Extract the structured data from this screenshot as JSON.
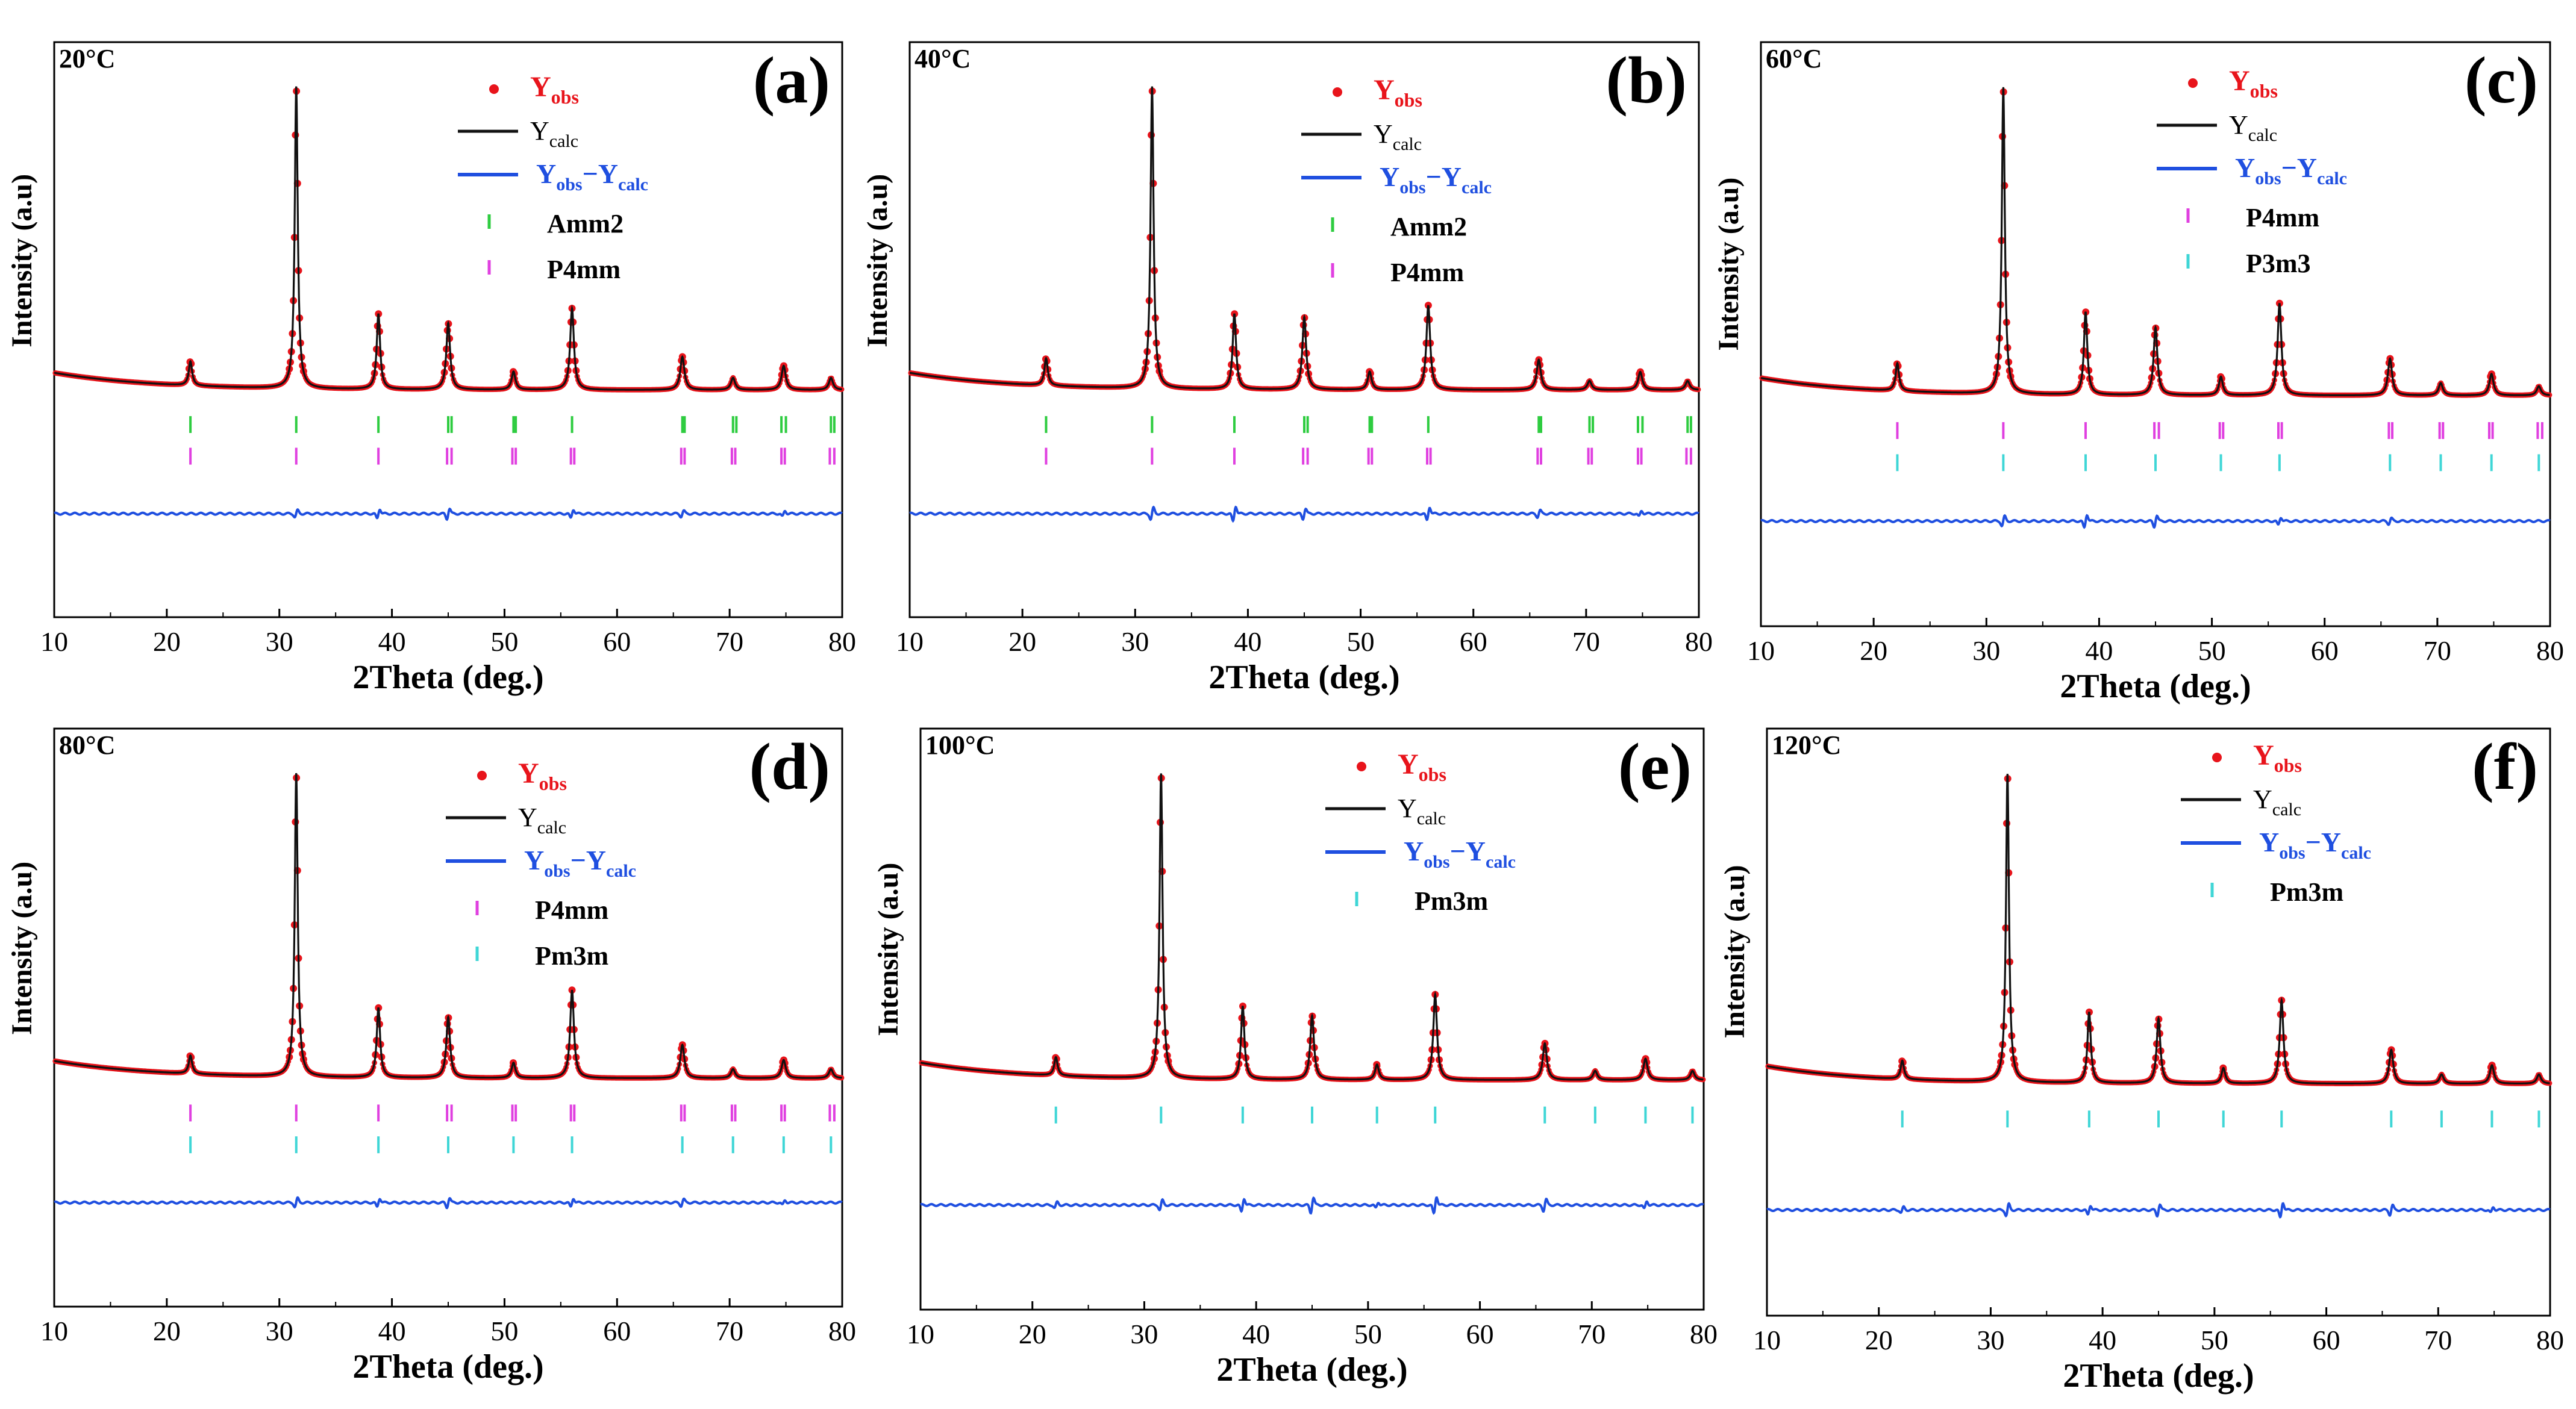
{
  "figure": {
    "common": {
      "xlabel": "2Theta (deg.)",
      "ylabel": "Intensity (a.u)",
      "x_ticks": [
        "10",
        "20",
        "30",
        "40",
        "50",
        "60",
        "70",
        "80"
      ],
      "xlim": [
        10,
        80
      ]
    },
    "colors": {
      "obs": "#e8141b",
      "calc": "#111111",
      "diff": "#1f4fe0",
      "Amm2": "#2ecc40",
      "P4mm": "#e040e0",
      "P3m3": "#3fd6d6",
      "Pm3m": "#3fd6d6"
    }
  },
  "chart_data": [
    {
      "type": "line",
      "panel": "(a)",
      "temperature": "20°C",
      "legend": {
        "obs": {
          "main": "Y",
          "sub": "obs"
        },
        "calc": {
          "main": "Y",
          "sub": "calc"
        },
        "diff": {
          "main1": "Y",
          "sub1": "obs",
          "mid": "−Y",
          "sub2": "calc"
        }
      },
      "phases": [
        "Amm2",
        "P4mm"
      ],
      "peaks": [
        {
          "x": 22.1,
          "h": 0.08,
          "w": 0.18
        },
        {
          "x": 31.5,
          "h": 1.0,
          "w": 0.16
        },
        {
          "x": 38.8,
          "h": 0.25,
          "w": 0.18
        },
        {
          "x": 45.0,
          "h": 0.22,
          "w": 0.2
        },
        {
          "x": 50.8,
          "h": 0.06,
          "w": 0.2
        },
        {
          "x": 56.0,
          "h": 0.27,
          "w": 0.2
        },
        {
          "x": 65.8,
          "h": 0.11,
          "w": 0.22
        },
        {
          "x": 70.3,
          "h": 0.04,
          "w": 0.22
        },
        {
          "x": 74.8,
          "h": 0.08,
          "w": 0.22
        },
        {
          "x": 79.0,
          "h": 0.04,
          "w": 0.22
        }
      ],
      "reflections": {
        "Amm2": [
          22.1,
          31.5,
          38.8,
          45.0,
          45.3,
          50.8,
          51.0,
          56.0,
          65.8,
          66.0,
          70.3,
          70.6,
          74.6,
          75.0,
          79.0,
          79.3
        ],
        "P4mm": [
          22.1,
          31.5,
          38.8,
          44.9,
          45.3,
          50.7,
          51.0,
          55.9,
          56.2,
          65.7,
          66.0,
          70.2,
          70.5,
          74.6,
          74.9,
          78.9,
          79.3
        ]
      },
      "diff_spikes": [
        {
          "x": 31.5,
          "a": 0.35
        },
        {
          "x": 38.8,
          "a": 0.5
        },
        {
          "x": 45.0,
          "a": 0.55
        },
        {
          "x": 56.0,
          "a": 0.45
        },
        {
          "x": 65.8,
          "a": 0.3
        },
        {
          "x": 74.8,
          "a": 0.3
        }
      ]
    },
    {
      "type": "line",
      "panel": "(b)",
      "temperature": "40°C",
      "legend": {
        "obs": {
          "main": "Y",
          "sub": "obs"
        },
        "calc": {
          "main": "Y",
          "sub": "calc"
        },
        "diff": {
          "main1": "Y",
          "sub1": "obs",
          "mid": "−Y",
          "sub2": "calc"
        }
      },
      "phases": [
        "Amm2",
        "P4mm"
      ],
      "peaks": [
        {
          "x": 22.1,
          "h": 0.09,
          "w": 0.18
        },
        {
          "x": 31.5,
          "h": 1.0,
          "w": 0.16
        },
        {
          "x": 38.8,
          "h": 0.25,
          "w": 0.18
        },
        {
          "x": 45.0,
          "h": 0.24,
          "w": 0.2
        },
        {
          "x": 50.8,
          "h": 0.06,
          "w": 0.2
        },
        {
          "x": 56.0,
          "h": 0.28,
          "w": 0.2
        },
        {
          "x": 65.8,
          "h": 0.1,
          "w": 0.22
        },
        {
          "x": 70.3,
          "h": 0.03,
          "w": 0.22
        },
        {
          "x": 74.8,
          "h": 0.06,
          "w": 0.22
        },
        {
          "x": 79.0,
          "h": 0.03,
          "w": 0.22
        }
      ],
      "reflections": {
        "Amm2": [
          22.1,
          31.5,
          38.8,
          45.0,
          45.3,
          50.8,
          51.0,
          56.0,
          65.8,
          66.0,
          70.3,
          70.6,
          74.6,
          75.0,
          79.0,
          79.3
        ],
        "P4mm": [
          22.1,
          31.5,
          38.8,
          44.9,
          45.3,
          50.7,
          51.0,
          55.9,
          56.2,
          65.7,
          66.0,
          70.2,
          70.5,
          74.6,
          74.9,
          78.9,
          79.3
        ]
      },
      "diff_spikes": [
        {
          "x": 31.5,
          "a": 0.6
        },
        {
          "x": 38.8,
          "a": 0.8
        },
        {
          "x": 45.0,
          "a": 0.55
        },
        {
          "x": 56.0,
          "a": 0.7
        },
        {
          "x": 65.8,
          "a": 0.35
        },
        {
          "x": 74.8,
          "a": 0.3
        }
      ]
    },
    {
      "type": "line",
      "panel": "(c)",
      "temperature": "60°C",
      "legend": {
        "obs": {
          "main": "Y",
          "sub": "obs"
        },
        "calc": {
          "main": "Y",
          "sub": "calc"
        },
        "diff": {
          "main1": "Y",
          "sub1": "obs",
          "mid": "−Y",
          "sub2": "calc"
        }
      },
      "phases": [
        "P4mm",
        "P3m3"
      ],
      "peaks": [
        {
          "x": 22.1,
          "h": 0.09,
          "w": 0.18
        },
        {
          "x": 31.5,
          "h": 1.0,
          "w": 0.16
        },
        {
          "x": 38.8,
          "h": 0.27,
          "w": 0.18
        },
        {
          "x": 45.0,
          "h": 0.22,
          "w": 0.2
        },
        {
          "x": 50.8,
          "h": 0.06,
          "w": 0.2
        },
        {
          "x": 56.0,
          "h": 0.3,
          "w": 0.2
        },
        {
          "x": 65.8,
          "h": 0.12,
          "w": 0.22
        },
        {
          "x": 70.3,
          "h": 0.04,
          "w": 0.22
        },
        {
          "x": 74.8,
          "h": 0.07,
          "w": 0.22
        },
        {
          "x": 79.0,
          "h": 0.03,
          "w": 0.22
        }
      ],
      "reflections": {
        "P4mm": [
          22.1,
          31.5,
          38.8,
          44.9,
          45.3,
          50.7,
          51.0,
          55.9,
          56.2,
          65.7,
          66.0,
          70.2,
          70.5,
          74.6,
          74.9,
          78.9,
          79.3
        ],
        "P3m3": [
          22.1,
          31.5,
          38.8,
          45.0,
          50.8,
          56.0,
          65.8,
          70.3,
          74.8,
          79.0
        ]
      },
      "diff_spikes": [
        {
          "x": 31.5,
          "a": 0.5
        },
        {
          "x": 38.8,
          "a": 0.7
        },
        {
          "x": 45.0,
          "a": 0.6
        },
        {
          "x": 56.0,
          "a": 0.4
        },
        {
          "x": 65.8,
          "a": 0.3
        }
      ]
    },
    {
      "type": "line",
      "panel": "(d)",
      "temperature": "80°C",
      "legend": {
        "obs": {
          "main": "Y",
          "sub": "obs"
        },
        "calc": {
          "main": "Y",
          "sub": "calc"
        },
        "diff": {
          "main1": "Y",
          "sub1": "obs",
          "mid": "−Y",
          "sub2": "calc"
        }
      },
      "phases": [
        "P4mm",
        "Pm3m"
      ],
      "peaks": [
        {
          "x": 22.1,
          "h": 0.06,
          "w": 0.18
        },
        {
          "x": 31.5,
          "h": 1.0,
          "w": 0.16
        },
        {
          "x": 38.8,
          "h": 0.23,
          "w": 0.18
        },
        {
          "x": 45.0,
          "h": 0.2,
          "w": 0.2
        },
        {
          "x": 50.8,
          "h": 0.05,
          "w": 0.2
        },
        {
          "x": 56.0,
          "h": 0.29,
          "w": 0.2
        },
        {
          "x": 65.8,
          "h": 0.11,
          "w": 0.22
        },
        {
          "x": 70.3,
          "h": 0.03,
          "w": 0.22
        },
        {
          "x": 74.8,
          "h": 0.06,
          "w": 0.22
        },
        {
          "x": 79.0,
          "h": 0.03,
          "w": 0.22
        }
      ],
      "reflections": {
        "P4mm": [
          22.1,
          31.5,
          38.8,
          44.9,
          45.3,
          50.7,
          51.0,
          55.9,
          56.2,
          65.7,
          66.0,
          70.2,
          70.5,
          74.6,
          74.9,
          78.9,
          79.3
        ],
        "Pm3m": [
          22.1,
          31.5,
          38.8,
          45.0,
          50.8,
          56.0,
          65.8,
          70.3,
          74.8,
          79.0
        ]
      },
      "diff_spikes": [
        {
          "x": 31.5,
          "a": 0.45
        },
        {
          "x": 38.8,
          "a": 0.45
        },
        {
          "x": 45.0,
          "a": 0.5
        },
        {
          "x": 56.0,
          "a": 0.45
        },
        {
          "x": 65.8,
          "a": 0.35
        },
        {
          "x": 74.8,
          "a": 0.25
        }
      ]
    },
    {
      "type": "line",
      "panel": "(e)",
      "temperature": "100°C",
      "legend": {
        "obs": {
          "main": "Y",
          "sub": "obs"
        },
        "calc": {
          "main": "Y",
          "sub": "calc"
        },
        "diff": {
          "main1": "Y",
          "sub1": "obs",
          "mid": "−Y",
          "sub2": "calc"
        }
      },
      "phases": [
        "Pm3m"
      ],
      "peaks": [
        {
          "x": 22.1,
          "h": 0.06,
          "w": 0.18
        },
        {
          "x": 31.5,
          "h": 1.0,
          "w": 0.16
        },
        {
          "x": 38.8,
          "h": 0.24,
          "w": 0.18
        },
        {
          "x": 45.0,
          "h": 0.21,
          "w": 0.2
        },
        {
          "x": 50.8,
          "h": 0.05,
          "w": 0.2
        },
        {
          "x": 56.0,
          "h": 0.28,
          "w": 0.2
        },
        {
          "x": 65.8,
          "h": 0.12,
          "w": 0.22
        },
        {
          "x": 70.3,
          "h": 0.03,
          "w": 0.22
        },
        {
          "x": 74.8,
          "h": 0.07,
          "w": 0.22
        },
        {
          "x": 79.0,
          "h": 0.03,
          "w": 0.22
        }
      ],
      "reflections": {
        "Pm3m": [
          22.1,
          31.5,
          38.8,
          45.0,
          50.8,
          56.0,
          65.8,
          70.3,
          74.8,
          79.0
        ]
      },
      "diff_spikes": [
        {
          "x": 22.1,
          "a": 0.3
        },
        {
          "x": 31.5,
          "a": 0.5
        },
        {
          "x": 38.8,
          "a": 0.7
        },
        {
          "x": 45.0,
          "a": 0.8
        },
        {
          "x": 50.8,
          "a": 0.3
        },
        {
          "x": 56.0,
          "a": 0.9
        },
        {
          "x": 65.8,
          "a": 0.6
        },
        {
          "x": 74.8,
          "a": 0.4
        }
      ]
    },
    {
      "type": "line",
      "panel": "(f)",
      "temperature": "120°C",
      "legend": {
        "obs": {
          "main": "Y",
          "sub": "obs"
        },
        "calc": {
          "main": "Y",
          "sub": "calc"
        },
        "diff": {
          "main1": "Y",
          "sub1": "obs",
          "mid": "−Y",
          "sub2": "calc"
        }
      },
      "phases": [
        "Pm3m"
      ],
      "peaks": [
        {
          "x": 22.1,
          "h": 0.06,
          "w": 0.18
        },
        {
          "x": 31.5,
          "h": 1.0,
          "w": 0.16
        },
        {
          "x": 38.8,
          "h": 0.23,
          "w": 0.18
        },
        {
          "x": 45.0,
          "h": 0.21,
          "w": 0.2
        },
        {
          "x": 50.8,
          "h": 0.05,
          "w": 0.2
        },
        {
          "x": 56.0,
          "h": 0.27,
          "w": 0.2
        },
        {
          "x": 65.8,
          "h": 0.11,
          "w": 0.22
        },
        {
          "x": 70.3,
          "h": 0.03,
          "w": 0.22
        },
        {
          "x": 74.8,
          "h": 0.06,
          "w": 0.22
        },
        {
          "x": 79.0,
          "h": 0.03,
          "w": 0.22
        }
      ],
      "reflections": {
        "Pm3m": [
          22.1,
          31.5,
          38.8,
          45.0,
          50.8,
          56.0,
          65.8,
          70.3,
          74.8,
          79.0
        ]
      },
      "diff_spikes": [
        {
          "x": 22.1,
          "a": 0.3
        },
        {
          "x": 31.5,
          "a": 0.6
        },
        {
          "x": 38.8,
          "a": 0.5
        },
        {
          "x": 45.0,
          "a": 0.6
        },
        {
          "x": 56.0,
          "a": 0.8
        },
        {
          "x": 65.8,
          "a": 0.5
        },
        {
          "x": 74.8,
          "a": 0.3
        }
      ]
    }
  ]
}
